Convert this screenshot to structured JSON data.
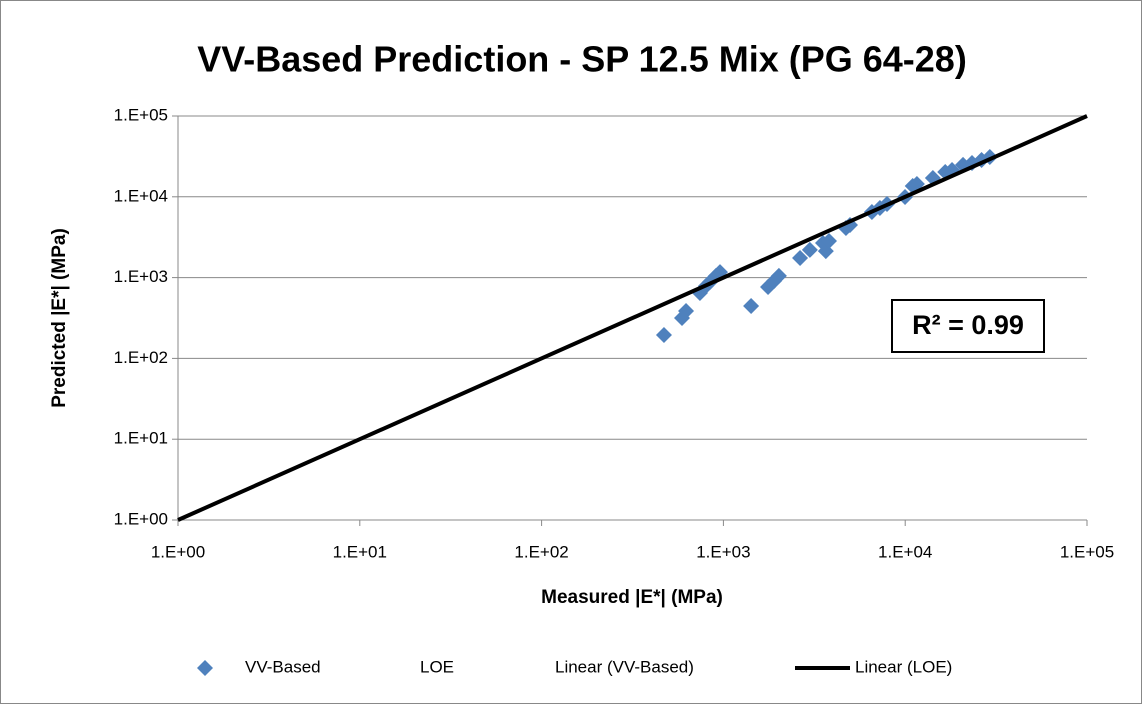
{
  "chart_data": {
    "type": "scatter",
    "title": "VV-Based Prediction - SP 12.5 Mix (PG 64-28)",
    "x_label": "Measured |E*| (MPa)",
    "y_label": "Predicted |E*| (MPa)",
    "annotation": "R² = 0.99",
    "log_x": true,
    "log_y": true,
    "grid": true,
    "legend": "bottom",
    "xlim": [
      1,
      100000
    ],
    "ylim": [
      1,
      100000
    ],
    "xticks": [
      {
        "value": 1,
        "label": "1.E+00"
      },
      {
        "value": 10,
        "label": "1.E+01"
      },
      {
        "value": 100,
        "label": "1.E+02"
      },
      {
        "value": 1000,
        "label": "1.E+03"
      },
      {
        "value": 10000,
        "label": "1.E+04"
      },
      {
        "value": 100000,
        "label": "1.E+05"
      }
    ],
    "yticks": [
      {
        "value": 1,
        "label": "1.E+00"
      },
      {
        "value": 10,
        "label": "1.E+01"
      },
      {
        "value": 100,
        "label": "1.E+02"
      },
      {
        "value": 1000,
        "label": "1.E+03"
      },
      {
        "value": 10000,
        "label": "1.E+04"
      },
      {
        "value": 100000,
        "label": "1.E+05"
      }
    ],
    "series": [
      {
        "name": "VV-Based",
        "color": "#4f81bd",
        "marker": "diamond",
        "x": [
          471,
          592,
          623,
          743,
          802,
          844,
          910,
          958,
          1420,
          1760,
          1900,
          2020,
          2640,
          2990,
          3530,
          3660,
          3810,
          4720,
          4970,
          6560,
          7260,
          7940,
          9980,
          11000,
          11600,
          14200,
          16600,
          18100,
          20800,
          23300,
          26300,
          29200
        ],
        "values": [
          195,
          316,
          386,
          645,
          787,
          883,
          1050,
          1170,
          445,
          765,
          908,
          1050,
          1750,
          2200,
          2680,
          2130,
          2840,
          4110,
          4480,
          6490,
          7260,
          8150,
          9950,
          13600,
          14400,
          17100,
          20300,
          21500,
          24800,
          26200,
          28500,
          31100
        ]
      },
      {
        "name": "LOE"
      },
      {
        "name": "Linear (VV-Based)"
      },
      {
        "name": "Linear (LOE)",
        "color": "#000000",
        "marker": "line",
        "x": [
          1,
          100000
        ],
        "values": [
          1,
          100000
        ]
      }
    ]
  }
}
